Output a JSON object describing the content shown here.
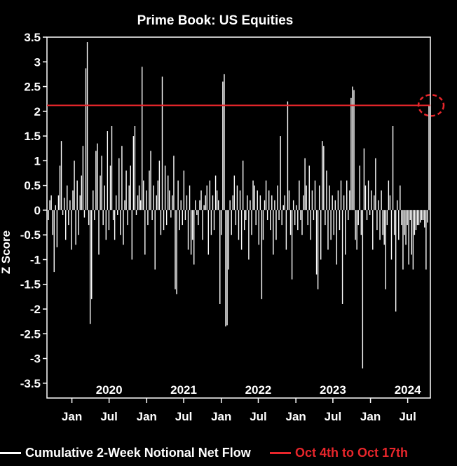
{
  "chart_data": {
    "type": "bar",
    "title": "Prime Book: US Equities",
    "ylabel": "Z Score",
    "ylim": [
      -3.8,
      3.5
    ],
    "yticks": [
      "3.5",
      "3",
      "2.5",
      "2",
      "1.5",
      "1",
      "0.5",
      "0",
      "-0.5",
      "-1",
      "-1.5",
      "-2",
      "-2.5",
      "-3",
      "-3.5"
    ],
    "ytick_values": [
      3.5,
      3,
      2.5,
      2,
      1.5,
      1,
      0.5,
      0,
      -0.5,
      -1,
      -1.5,
      -2,
      -2.5,
      -3,
      -3.5
    ],
    "x_start": "2019-09-01",
    "x_end": "2024-10-20",
    "year_labels": [
      {
        "label": "2020",
        "date": "2020-07-01"
      },
      {
        "label": "2021",
        "date": "2021-07-01"
      },
      {
        "label": "2022",
        "date": "2022-07-01"
      },
      {
        "label": "2023",
        "date": "2023-07-01"
      },
      {
        "label": "2024",
        "date": "2024-07-01"
      }
    ],
    "month_ticks": [
      {
        "label": "Jan",
        "date": "2020-01-01"
      },
      {
        "label": "Jul",
        "date": "2020-07-01"
      },
      {
        "label": "Jan",
        "date": "2021-01-01"
      },
      {
        "label": "Jul",
        "date": "2021-07-01"
      },
      {
        "label": "Jan",
        "date": "2022-01-01"
      },
      {
        "label": "Jul",
        "date": "2022-07-01"
      },
      {
        "label": "Jan",
        "date": "2023-01-01"
      },
      {
        "label": "Jul",
        "date": "2023-07-01"
      },
      {
        "label": "Jan",
        "date": "2024-01-01"
      },
      {
        "label": "Jul",
        "date": "2024-07-01"
      }
    ],
    "series": [
      {
        "name": "Cumulative 2-Week Notional Net Flow",
        "color": "#ffffff",
        "values": [
          -0.2,
          0.2,
          0.3,
          -0.5,
          -1.25,
          0.1,
          -0.75,
          0.3,
          0.9,
          1.4,
          -0.1,
          0.25,
          -0.6,
          0.5,
          -0.3,
          0.2,
          -0.8,
          0.4,
          1.0,
          -0.7,
          0.6,
          -0.5,
          0.3,
          0.7,
          1.3,
          -0.15,
          2.87,
          3.4,
          -0.3,
          -2.3,
          -1.8,
          0.4,
          -0.2,
          1.2,
          1.35,
          -0.9,
          0.7,
          1.1,
          -0.3,
          0.5,
          -0.6,
          1.6,
          -0.4,
          0.9,
          1.7,
          -0.2,
          -0.6,
          0.3,
          -0.1,
          1.05,
          -0.5,
          1.3,
          -0.7,
          0.2,
          0.8,
          -0.3,
          0.5,
          0.9,
          -1.0,
          1.5,
          1.7,
          -0.1,
          0.3,
          0.5,
          0.2,
          2.9,
          0.6,
          -0.9,
          0.4,
          -0.3,
          0.8,
          1.2,
          -0.2,
          0.5,
          -1.2,
          0.3,
          0.6,
          1.0,
          -0.5,
          2.7,
          -0.4,
          0.9,
          -0.3,
          0.7,
          0.4,
          -0.15,
          0.3,
          1.1,
          -1.6,
          -1.7,
          0.6,
          -0.4,
          0.2,
          -0.3,
          0.8,
          -0.2,
          0.3,
          -0.8,
          0.5,
          -0.9,
          -0.6,
          -1.1,
          0.2,
          -0.1,
          -0.3,
          0.2,
          0.4,
          -0.6,
          0.1,
          0.3,
          0.5,
          -0.9,
          0.6,
          -0.5,
          0.3,
          -0.4,
          0.7,
          0.4,
          0.2,
          -1.9,
          -0.5,
          2.6,
          2.75,
          -2.35,
          -2.33,
          -1.2,
          0.2,
          -0.5,
          0.3,
          0.7,
          -0.3,
          0.5,
          -0.6,
          0.4,
          -0.8,
          1.0,
          -0.4,
          -0.2,
          0.3,
          -1.0,
          0.2,
          -0.5,
          0.6,
          0.5,
          -0.3,
          0.4,
          -0.7,
          0.3,
          -1.8,
          -0.6,
          0.2,
          0.6,
          -0.2,
          0.4,
          -0.4,
          0.3,
          -0.9,
          0.2,
          -0.6,
          0.5,
          -0.2,
          1.5,
          -0.3,
          0.1,
          0.3,
          -0.8,
          2.2,
          0.4,
          -0.5,
          -1.4,
          0.2,
          -0.3,
          0.1,
          -0.4,
          0.6,
          -0.2,
          -0.5,
          0.3,
          1.05,
          0.5,
          -0.3,
          0.9,
          -0.6,
          0.4,
          -0.2,
          0.6,
          -1.3,
          -1.6,
          0.5,
          -1.0,
          1.4,
          1.3,
          -0.3,
          0.8,
          -0.8,
          0.5,
          -0.6,
          0.3,
          -0.5,
          0.2,
          -1.1,
          0.4,
          -0.4,
          0.6,
          -1.9,
          0.3,
          -0.9,
          0.6,
          -0.2,
          0.4,
          2.27,
          2.5,
          2.43,
          -0.6,
          -0.8,
          -0.3,
          0.9,
          -0.5,
          -3.2,
          1.25,
          0.5,
          -0.2,
          0.6,
          -0.1,
          0.4,
          -0.8,
          0.3,
          1.05,
          -0.4,
          0.2,
          -0.6,
          0.4,
          -0.5,
          -0.7,
          -1.6,
          -0.3,
          0.6,
          0.3,
          -1.0,
          1.7,
          -0.5,
          -2.05,
          0.2,
          -0.6,
          0.5,
          -0.3,
          -1.2,
          -0.5,
          -0.7,
          -0.3,
          -1.1,
          -0.2,
          -0.9,
          -1.2,
          -0.5,
          -0.4,
          -0.3,
          -0.3,
          -0.25,
          -0.2,
          -0.2,
          -0.35,
          -1.2,
          -0.25,
          2.12
        ]
      },
      {
        "name": "Oct 4th to Oct 17th",
        "color": "#e8262b",
        "value": 2.12
      }
    ],
    "highlight": {
      "shape": "dashed-circle",
      "color": "#e8262b",
      "x_date": "2024-10-11",
      "y": 2.12
    }
  }
}
